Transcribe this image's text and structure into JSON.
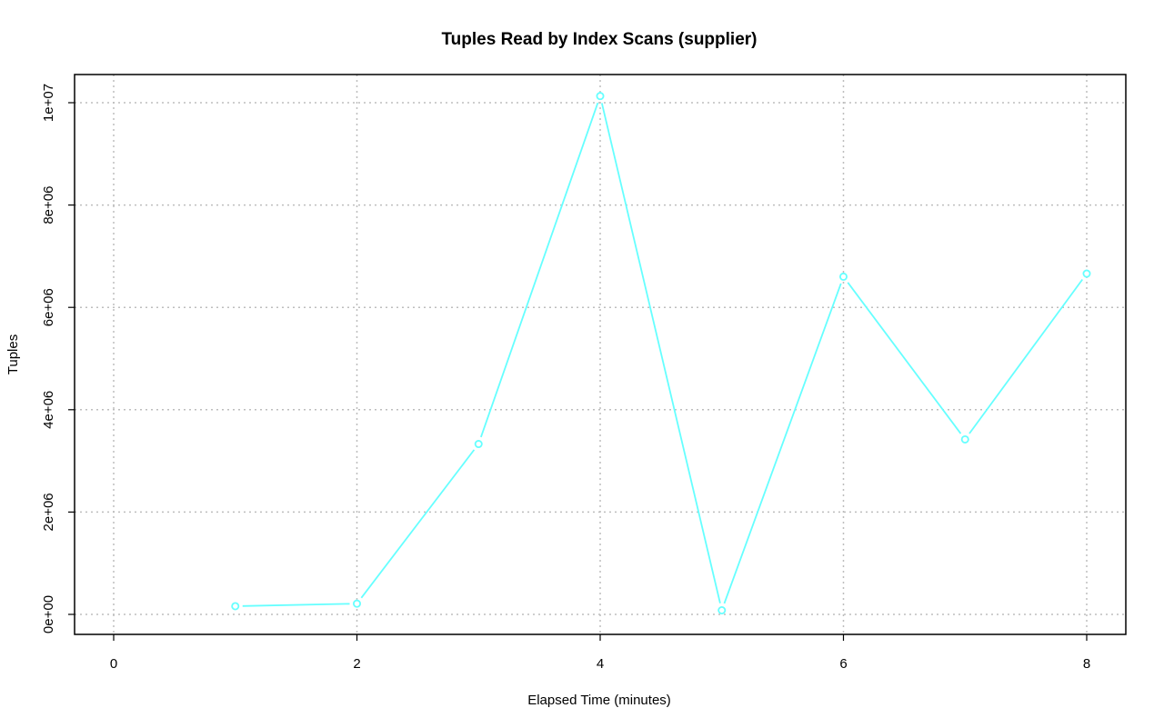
{
  "chart_data": {
    "type": "line",
    "title": "Tuples Read by Index Scans (supplier)",
    "xlabel": "Elapsed Time (minutes)",
    "ylabel": "Tuples",
    "xlim": [
      0,
      8
    ],
    "ylim": [
      0,
      10000000
    ],
    "x_ticks": [
      0,
      2,
      4,
      6,
      8
    ],
    "x_tick_labels": [
      "0",
      "2",
      "4",
      "6",
      "8"
    ],
    "y_ticks": [
      0,
      2000000,
      4000000,
      6000000,
      8000000,
      10000000
    ],
    "y_tick_labels": [
      "0e+00",
      "2e+06",
      "4e+06",
      "6e+06",
      "8e+06",
      "1e+07"
    ],
    "grid": true,
    "legend": "none",
    "series": [
      {
        "color": "#66ffff",
        "x": [
          1,
          2,
          3,
          4,
          5,
          6,
          7,
          8
        ],
        "values": [
          160000,
          210000,
          3330000,
          10130000,
          80000,
          6600000,
          3420000,
          6660000
        ]
      }
    ]
  }
}
